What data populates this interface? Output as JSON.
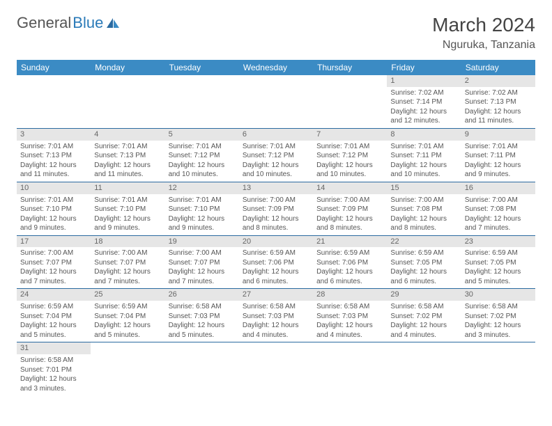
{
  "logo": {
    "text1": "General",
    "text2": "Blue"
  },
  "title": "March 2024",
  "location": "Nguruka, Tanzania",
  "colors": {
    "header_bg": "#3b8bc4",
    "header_text": "#ffffff",
    "row_border": "#2a6aa0",
    "daynum_bg": "#e6e6e6",
    "text": "#555555",
    "logo_blue": "#2a7ab8"
  },
  "weekdays": [
    "Sunday",
    "Monday",
    "Tuesday",
    "Wednesday",
    "Thursday",
    "Friday",
    "Saturday"
  ],
  "weeks": [
    [
      {
        "day": "",
        "sunrise": "",
        "sunset": "",
        "daylight1": "",
        "daylight2": ""
      },
      {
        "day": "",
        "sunrise": "",
        "sunset": "",
        "daylight1": "",
        "daylight2": ""
      },
      {
        "day": "",
        "sunrise": "",
        "sunset": "",
        "daylight1": "",
        "daylight2": ""
      },
      {
        "day": "",
        "sunrise": "",
        "sunset": "",
        "daylight1": "",
        "daylight2": ""
      },
      {
        "day": "",
        "sunrise": "",
        "sunset": "",
        "daylight1": "",
        "daylight2": ""
      },
      {
        "day": "1",
        "sunrise": "Sunrise: 7:02 AM",
        "sunset": "Sunset: 7:14 PM",
        "daylight1": "Daylight: 12 hours",
        "daylight2": "and 12 minutes."
      },
      {
        "day": "2",
        "sunrise": "Sunrise: 7:02 AM",
        "sunset": "Sunset: 7:13 PM",
        "daylight1": "Daylight: 12 hours",
        "daylight2": "and 11 minutes."
      }
    ],
    [
      {
        "day": "3",
        "sunrise": "Sunrise: 7:01 AM",
        "sunset": "Sunset: 7:13 PM",
        "daylight1": "Daylight: 12 hours",
        "daylight2": "and 11 minutes."
      },
      {
        "day": "4",
        "sunrise": "Sunrise: 7:01 AM",
        "sunset": "Sunset: 7:13 PM",
        "daylight1": "Daylight: 12 hours",
        "daylight2": "and 11 minutes."
      },
      {
        "day": "5",
        "sunrise": "Sunrise: 7:01 AM",
        "sunset": "Sunset: 7:12 PM",
        "daylight1": "Daylight: 12 hours",
        "daylight2": "and 10 minutes."
      },
      {
        "day": "6",
        "sunrise": "Sunrise: 7:01 AM",
        "sunset": "Sunset: 7:12 PM",
        "daylight1": "Daylight: 12 hours",
        "daylight2": "and 10 minutes."
      },
      {
        "day": "7",
        "sunrise": "Sunrise: 7:01 AM",
        "sunset": "Sunset: 7:12 PM",
        "daylight1": "Daylight: 12 hours",
        "daylight2": "and 10 minutes."
      },
      {
        "day": "8",
        "sunrise": "Sunrise: 7:01 AM",
        "sunset": "Sunset: 7:11 PM",
        "daylight1": "Daylight: 12 hours",
        "daylight2": "and 10 minutes."
      },
      {
        "day": "9",
        "sunrise": "Sunrise: 7:01 AM",
        "sunset": "Sunset: 7:11 PM",
        "daylight1": "Daylight: 12 hours",
        "daylight2": "and 9 minutes."
      }
    ],
    [
      {
        "day": "10",
        "sunrise": "Sunrise: 7:01 AM",
        "sunset": "Sunset: 7:10 PM",
        "daylight1": "Daylight: 12 hours",
        "daylight2": "and 9 minutes."
      },
      {
        "day": "11",
        "sunrise": "Sunrise: 7:01 AM",
        "sunset": "Sunset: 7:10 PM",
        "daylight1": "Daylight: 12 hours",
        "daylight2": "and 9 minutes."
      },
      {
        "day": "12",
        "sunrise": "Sunrise: 7:01 AM",
        "sunset": "Sunset: 7:10 PM",
        "daylight1": "Daylight: 12 hours",
        "daylight2": "and 9 minutes."
      },
      {
        "day": "13",
        "sunrise": "Sunrise: 7:00 AM",
        "sunset": "Sunset: 7:09 PM",
        "daylight1": "Daylight: 12 hours",
        "daylight2": "and 8 minutes."
      },
      {
        "day": "14",
        "sunrise": "Sunrise: 7:00 AM",
        "sunset": "Sunset: 7:09 PM",
        "daylight1": "Daylight: 12 hours",
        "daylight2": "and 8 minutes."
      },
      {
        "day": "15",
        "sunrise": "Sunrise: 7:00 AM",
        "sunset": "Sunset: 7:08 PM",
        "daylight1": "Daylight: 12 hours",
        "daylight2": "and 8 minutes."
      },
      {
        "day": "16",
        "sunrise": "Sunrise: 7:00 AM",
        "sunset": "Sunset: 7:08 PM",
        "daylight1": "Daylight: 12 hours",
        "daylight2": "and 7 minutes."
      }
    ],
    [
      {
        "day": "17",
        "sunrise": "Sunrise: 7:00 AM",
        "sunset": "Sunset: 7:07 PM",
        "daylight1": "Daylight: 12 hours",
        "daylight2": "and 7 minutes."
      },
      {
        "day": "18",
        "sunrise": "Sunrise: 7:00 AM",
        "sunset": "Sunset: 7:07 PM",
        "daylight1": "Daylight: 12 hours",
        "daylight2": "and 7 minutes."
      },
      {
        "day": "19",
        "sunrise": "Sunrise: 7:00 AM",
        "sunset": "Sunset: 7:07 PM",
        "daylight1": "Daylight: 12 hours",
        "daylight2": "and 7 minutes."
      },
      {
        "day": "20",
        "sunrise": "Sunrise: 6:59 AM",
        "sunset": "Sunset: 7:06 PM",
        "daylight1": "Daylight: 12 hours",
        "daylight2": "and 6 minutes."
      },
      {
        "day": "21",
        "sunrise": "Sunrise: 6:59 AM",
        "sunset": "Sunset: 7:06 PM",
        "daylight1": "Daylight: 12 hours",
        "daylight2": "and 6 minutes."
      },
      {
        "day": "22",
        "sunrise": "Sunrise: 6:59 AM",
        "sunset": "Sunset: 7:05 PM",
        "daylight1": "Daylight: 12 hours",
        "daylight2": "and 6 minutes."
      },
      {
        "day": "23",
        "sunrise": "Sunrise: 6:59 AM",
        "sunset": "Sunset: 7:05 PM",
        "daylight1": "Daylight: 12 hours",
        "daylight2": "and 5 minutes."
      }
    ],
    [
      {
        "day": "24",
        "sunrise": "Sunrise: 6:59 AM",
        "sunset": "Sunset: 7:04 PM",
        "daylight1": "Daylight: 12 hours",
        "daylight2": "and 5 minutes."
      },
      {
        "day": "25",
        "sunrise": "Sunrise: 6:59 AM",
        "sunset": "Sunset: 7:04 PM",
        "daylight1": "Daylight: 12 hours",
        "daylight2": "and 5 minutes."
      },
      {
        "day": "26",
        "sunrise": "Sunrise: 6:58 AM",
        "sunset": "Sunset: 7:03 PM",
        "daylight1": "Daylight: 12 hours",
        "daylight2": "and 5 minutes."
      },
      {
        "day": "27",
        "sunrise": "Sunrise: 6:58 AM",
        "sunset": "Sunset: 7:03 PM",
        "daylight1": "Daylight: 12 hours",
        "daylight2": "and 4 minutes."
      },
      {
        "day": "28",
        "sunrise": "Sunrise: 6:58 AM",
        "sunset": "Sunset: 7:03 PM",
        "daylight1": "Daylight: 12 hours",
        "daylight2": "and 4 minutes."
      },
      {
        "day": "29",
        "sunrise": "Sunrise: 6:58 AM",
        "sunset": "Sunset: 7:02 PM",
        "daylight1": "Daylight: 12 hours",
        "daylight2": "and 4 minutes."
      },
      {
        "day": "30",
        "sunrise": "Sunrise: 6:58 AM",
        "sunset": "Sunset: 7:02 PM",
        "daylight1": "Daylight: 12 hours",
        "daylight2": "and 3 minutes."
      }
    ],
    [
      {
        "day": "31",
        "sunrise": "Sunrise: 6:58 AM",
        "sunset": "Sunset: 7:01 PM",
        "daylight1": "Daylight: 12 hours",
        "daylight2": "and 3 minutes."
      },
      {
        "day": "",
        "sunrise": "",
        "sunset": "",
        "daylight1": "",
        "daylight2": ""
      },
      {
        "day": "",
        "sunrise": "",
        "sunset": "",
        "daylight1": "",
        "daylight2": ""
      },
      {
        "day": "",
        "sunrise": "",
        "sunset": "",
        "daylight1": "",
        "daylight2": ""
      },
      {
        "day": "",
        "sunrise": "",
        "sunset": "",
        "daylight1": "",
        "daylight2": ""
      },
      {
        "day": "",
        "sunrise": "",
        "sunset": "",
        "daylight1": "",
        "daylight2": ""
      },
      {
        "day": "",
        "sunrise": "",
        "sunset": "",
        "daylight1": "",
        "daylight2": ""
      }
    ]
  ]
}
